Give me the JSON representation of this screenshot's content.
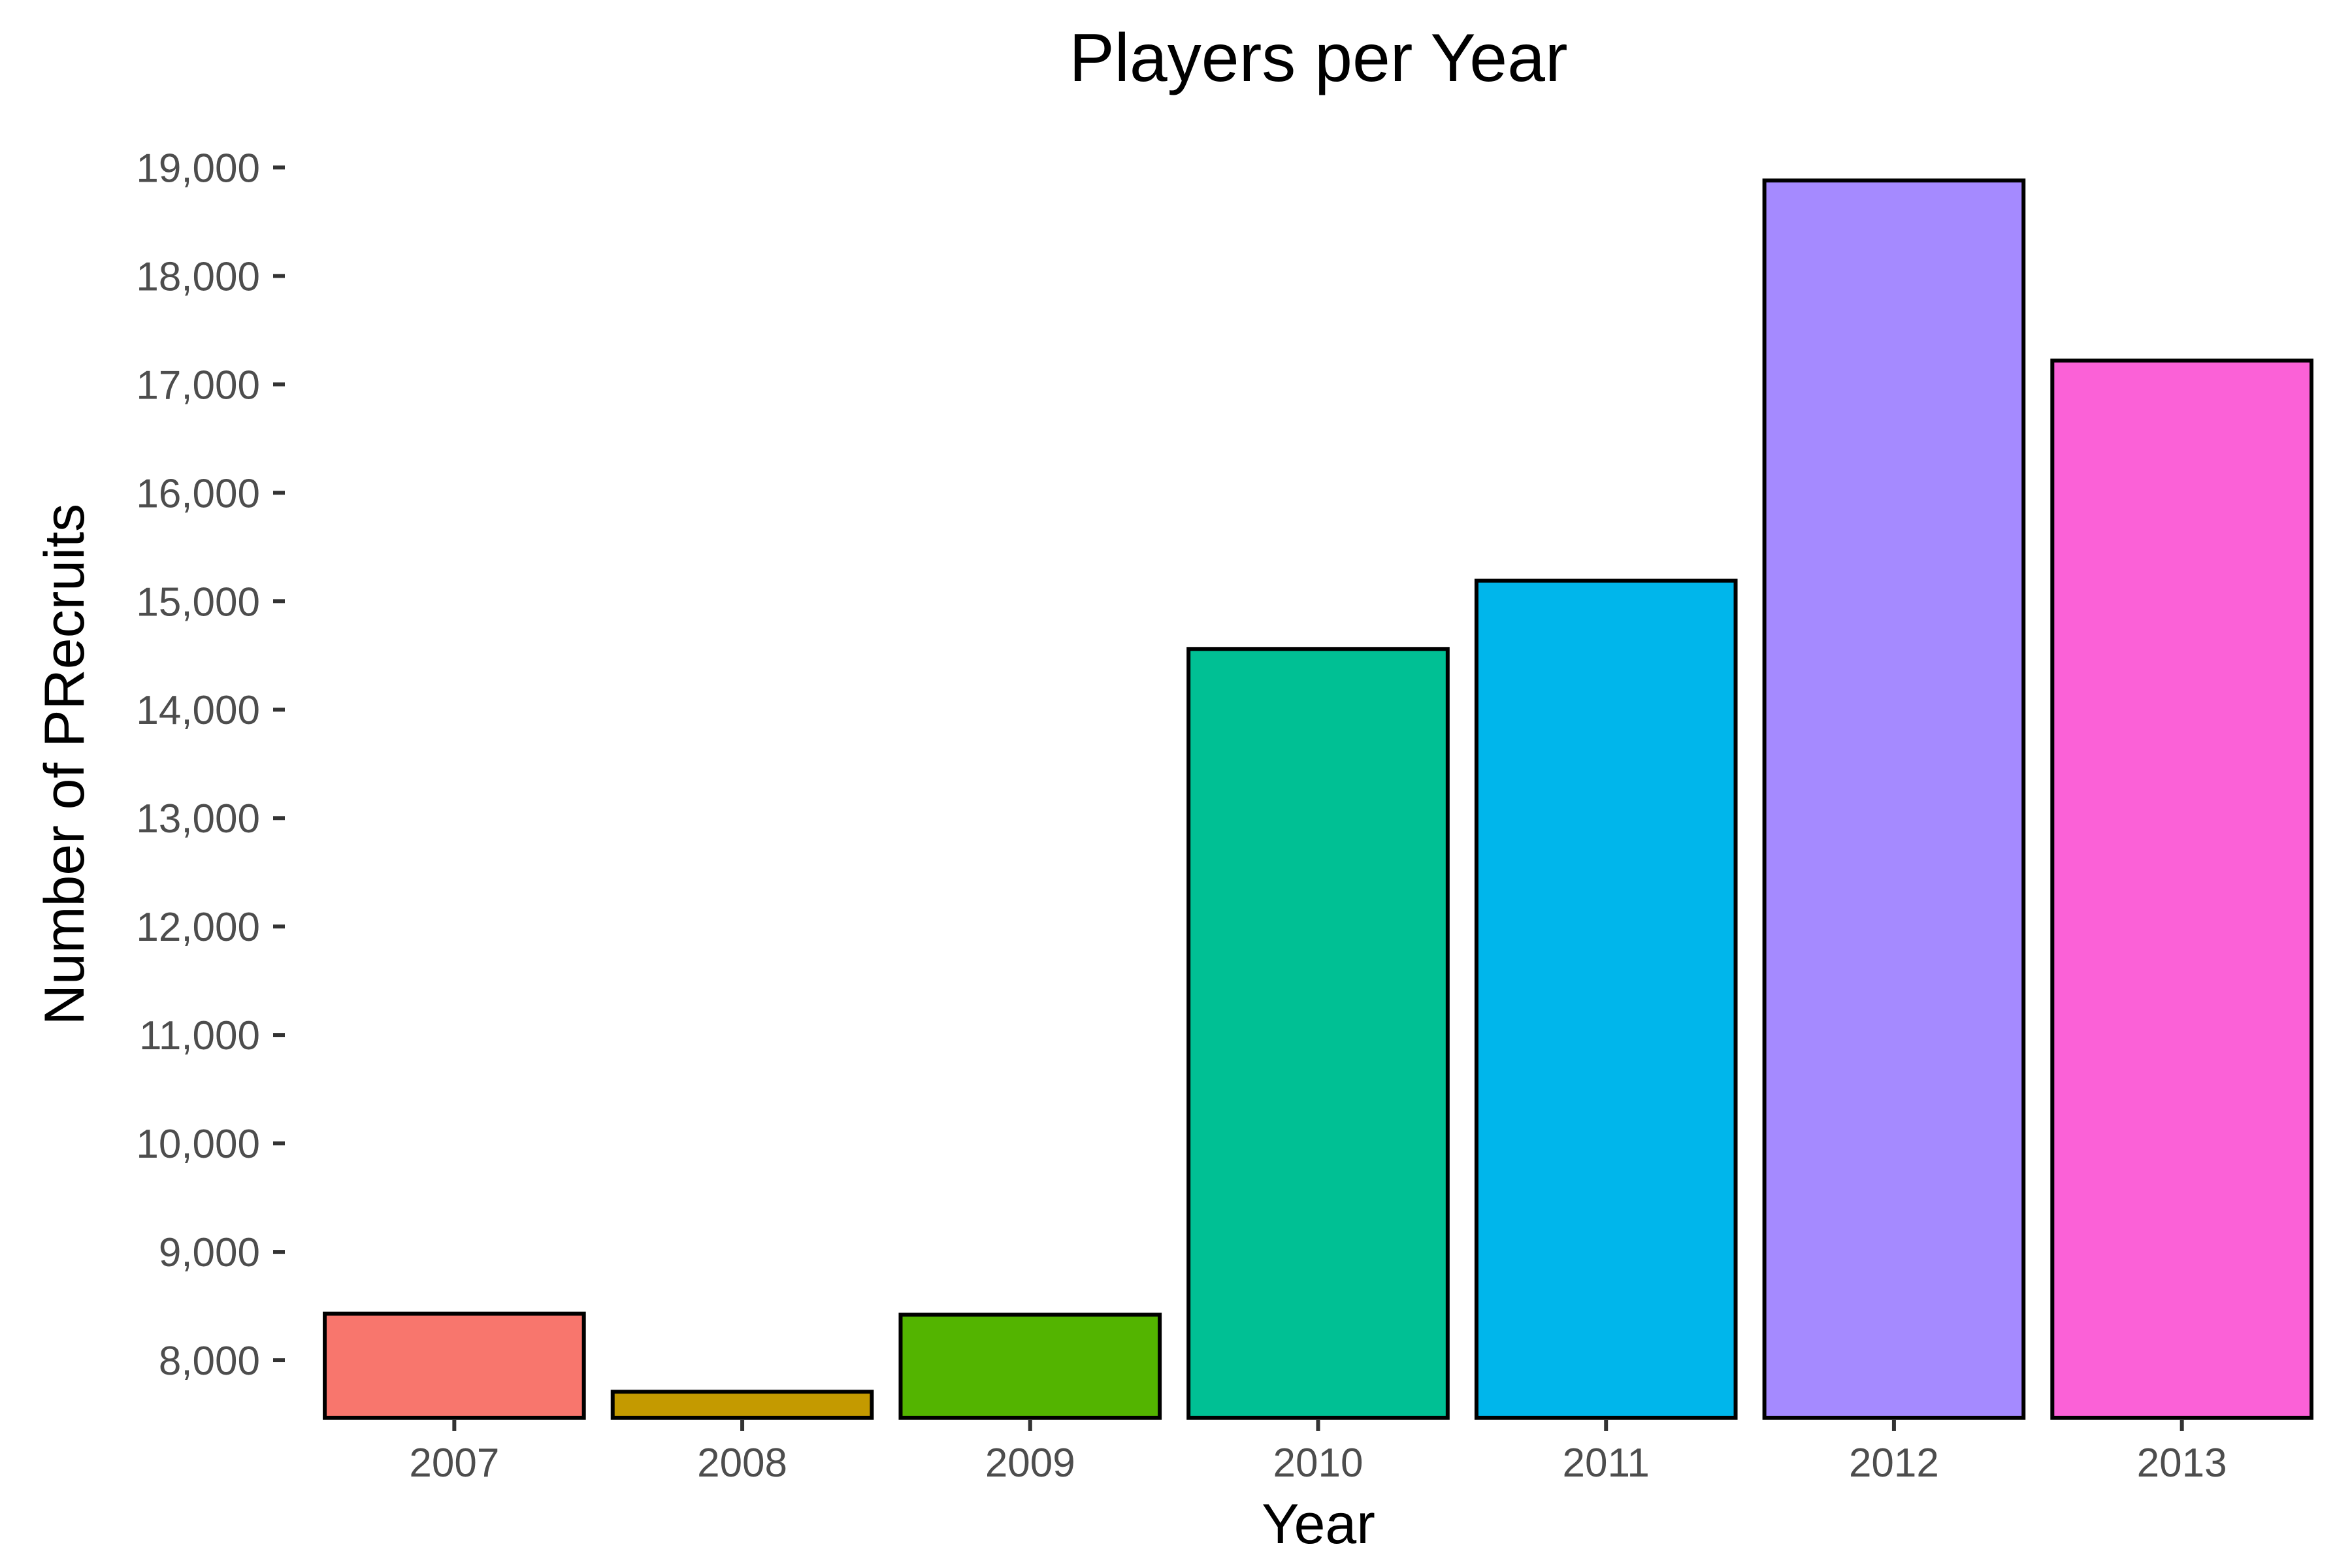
{
  "chart_data": {
    "type": "bar",
    "title": "Players per Year",
    "xlabel": "Year",
    "ylabel": "Number of PRecruits",
    "categories": [
      "2007",
      "2008",
      "2009",
      "2010",
      "2011",
      "2012",
      "2013"
    ],
    "values": [
      8430,
      7710,
      8420,
      14560,
      15190,
      18880,
      17220
    ],
    "colors": [
      "#F8766D",
      "#C49A00",
      "#53B400",
      "#00C094",
      "#00B6EB",
      "#A58AFF",
      "#FB61D7"
    ],
    "ylim": [
      7470,
      19400
    ],
    "yticks": [
      8000,
      9000,
      10000,
      11000,
      12000,
      13000,
      14000,
      15000,
      16000,
      17000,
      18000,
      19000
    ],
    "ytick_labels": [
      "8,000",
      "9,000",
      "10,000",
      "11,000",
      "12,000",
      "13,000",
      "14,000",
      "15,000",
      "16,000",
      "17,000",
      "18,000",
      "19,000"
    ],
    "grid": false,
    "legend": "none"
  }
}
